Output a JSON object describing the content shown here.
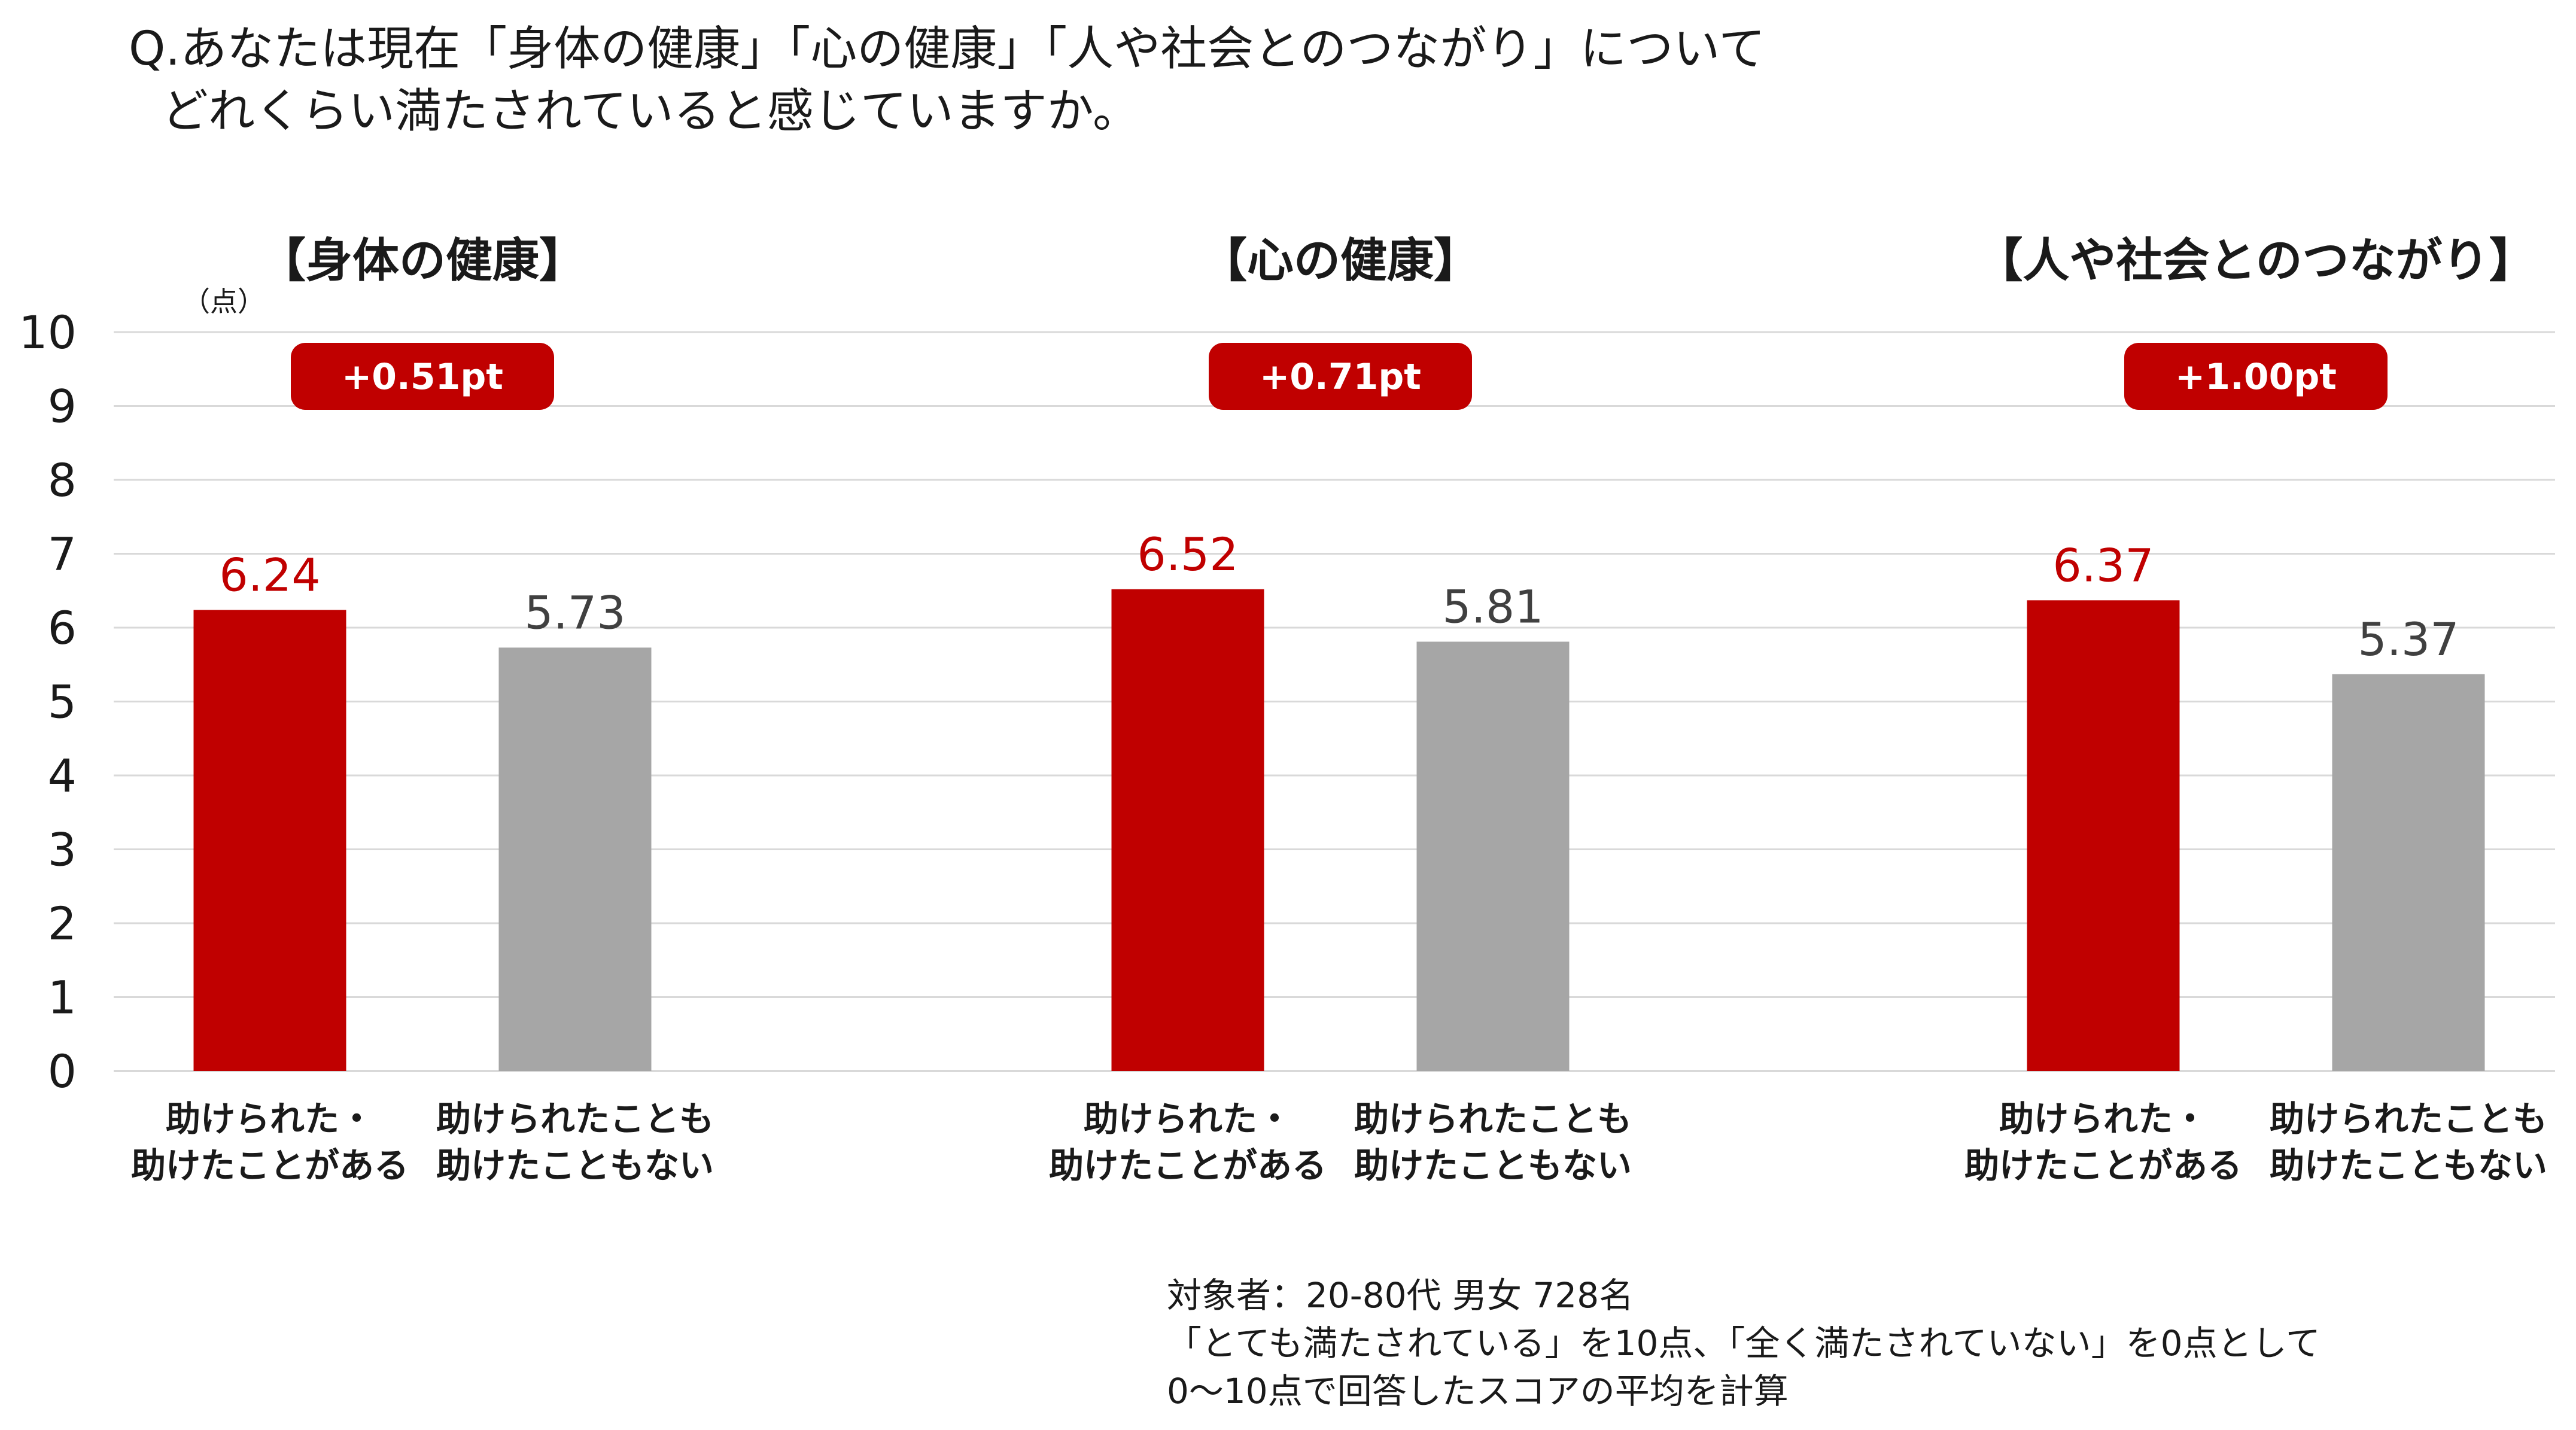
{
  "question": {
    "line1": "Q.あなたは現在「身体の健康」「心の健康」「人や社会とのつながり」について",
    "line2": "どれくらい満たされていると感じていますか。"
  },
  "chart_data": {
    "type": "bar",
    "unit_label": "（点）",
    "ylim": [
      0,
      10
    ],
    "yticks": [
      "0",
      "1",
      "2",
      "3",
      "4",
      "5",
      "6",
      "7",
      "8",
      "9",
      "10"
    ],
    "grid": true,
    "colors": {
      "highlight": "#C00000",
      "base": "#A6A6A6",
      "base_label": "#404040",
      "grid": "#D9D9D9"
    },
    "panels": [
      {
        "title": "【身体の健康】",
        "difference": "+0.51pt",
        "categories": [
          {
            "line1": "助けられた・",
            "line2": "助けたことがある"
          },
          {
            "line1": "助けられたことも",
            "line2": "助けたこともない"
          }
        ],
        "values": [
          6.24,
          5.73
        ],
        "value_labels": [
          "6.24",
          "5.73"
        ]
      },
      {
        "title": "【心の健康】",
        "difference": "+0.71pt",
        "categories": [
          {
            "line1": "助けられた・",
            "line2": "助けたことがある"
          },
          {
            "line1": "助けられたことも",
            "line2": "助けたこともない"
          }
        ],
        "values": [
          6.52,
          5.81
        ],
        "value_labels": [
          "6.52",
          "5.81"
        ]
      },
      {
        "title": "【人や社会とのつながり】",
        "difference": "+1.00pt",
        "categories": [
          {
            "line1": "助けられた・",
            "line2": "助けたことがある"
          },
          {
            "line1": "助けられたことも",
            "line2": "助けたこともない"
          }
        ],
        "values": [
          6.37,
          5.37
        ],
        "value_labels": [
          "6.37",
          "5.37"
        ]
      }
    ]
  },
  "notes": [
    "対象者：20-80代 男女 728名",
    "「とても満たされている」を10点、「全く満たされていない」を0点として",
    "0〜10点で回答したスコアの平均を計算"
  ]
}
